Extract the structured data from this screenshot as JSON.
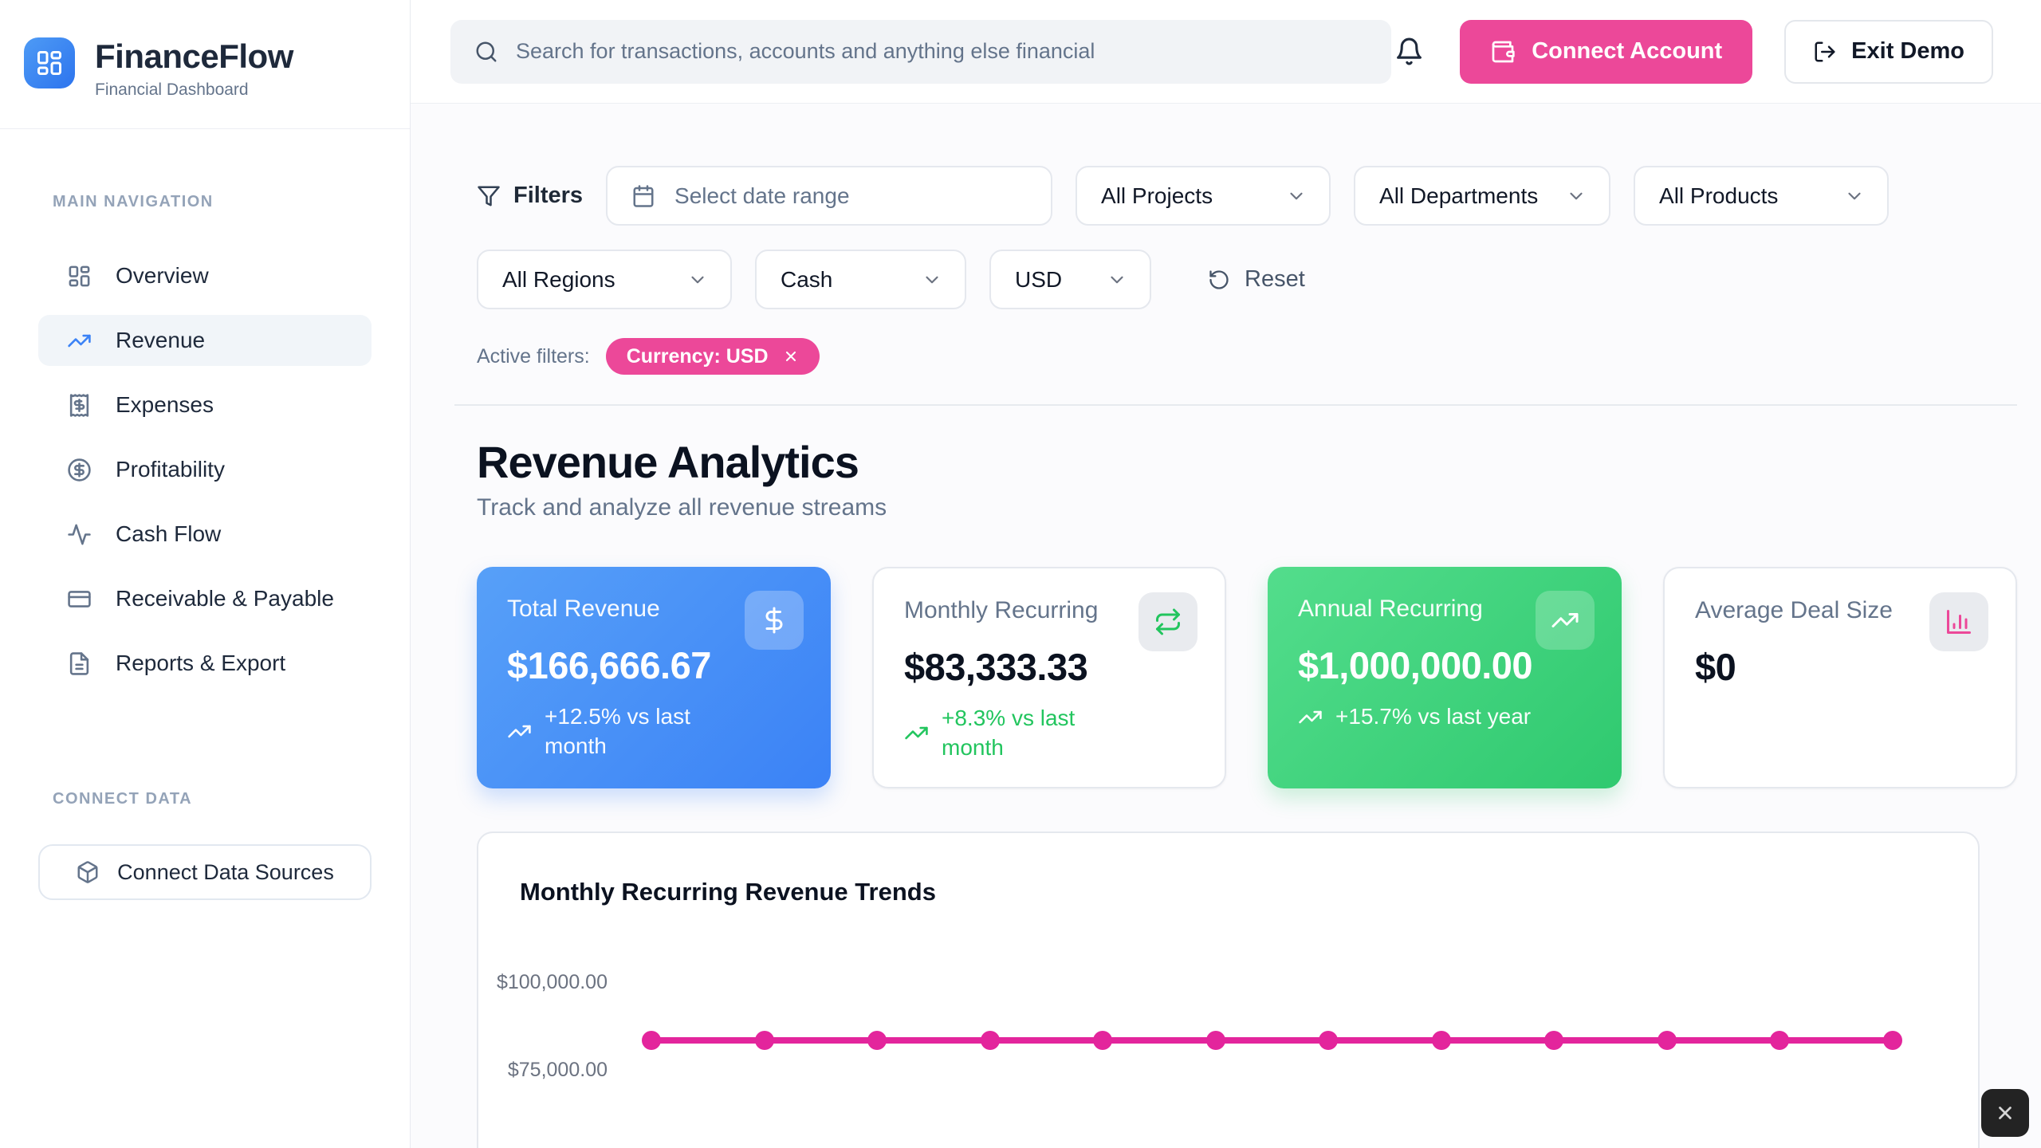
{
  "brand": {
    "name": "FinanceFlow",
    "tagline": "Financial Dashboard"
  },
  "topbar": {
    "search_placeholder": "Search for transactions, accounts and anything else financial",
    "connect_account": "Connect Account",
    "exit_demo": "Exit Demo"
  },
  "sidebar": {
    "section_main": "MAIN NAVIGATION",
    "items": [
      {
        "label": "Overview",
        "icon": "dashboard-icon",
        "active": false
      },
      {
        "label": "Revenue",
        "icon": "trending-up-icon",
        "active": true
      },
      {
        "label": "Expenses",
        "icon": "receipt-icon",
        "active": false
      },
      {
        "label": "Profitability",
        "icon": "circle-dollar-icon",
        "active": false
      },
      {
        "label": "Cash Flow",
        "icon": "activity-icon",
        "active": false
      },
      {
        "label": "Receivable & Payable",
        "icon": "credit-card-icon",
        "active": false
      },
      {
        "label": "Reports & Export",
        "icon": "file-text-icon",
        "active": false
      }
    ],
    "section_connect": "CONNECT DATA",
    "connect_button": "Connect Data Sources"
  },
  "filters": {
    "label": "Filters",
    "date_placeholder": "Select date range",
    "projects": "All Projects",
    "departments": "All Departments",
    "products": "All Products",
    "regions": "All Regions",
    "payment_type": "Cash",
    "currency": "USD",
    "reset": "Reset",
    "active_label": "Active filters:",
    "active_chip": "Currency: USD"
  },
  "page": {
    "title": "Revenue Analytics",
    "subtitle": "Track and analyze all revenue streams"
  },
  "stats": [
    {
      "title": "Total Revenue",
      "value": "$166,666.67",
      "change": "+12.5% vs last month",
      "style": "blue",
      "icon": "dollar-icon"
    },
    {
      "title": "Monthly Recurring",
      "value": "$83,333.33",
      "change": "+8.3% vs last month",
      "style": "white",
      "icon": "repeat-icon"
    },
    {
      "title": "Annual Recurring",
      "value": "$1,000,000.00",
      "change": "+15.7% vs last year",
      "style": "green",
      "icon": "trending-up-icon"
    },
    {
      "title": "Average Deal Size",
      "value": "$0",
      "style": "white",
      "icon": "bar-chart-icon"
    }
  ],
  "chart_data": {
    "type": "line",
    "title": "Monthly Recurring Revenue Trends",
    "series": [
      {
        "name": "Monthly Recurring Revenue",
        "values": [
          83333.33,
          83333.33,
          83333.33,
          83333.33,
          83333.33,
          83333.33,
          83333.33,
          83333.33,
          83333.33,
          83333.33,
          83333.33,
          83333.33
        ]
      }
    ],
    "num_points": 12,
    "y_ticks_visible": [
      "$100,000.00",
      "$75,000.00"
    ],
    "x_tick_labels_visible": false,
    "line_color": "#E3259C",
    "marker": "circle",
    "grid": false
  },
  "colors": {
    "accent_pink": "#EC4899",
    "brand_blue": "#3B82F6",
    "positive_green": "#22C55E",
    "chart_line": "#E3259C",
    "card_blue_gradient": [
      "#57A0F8",
      "#3B82F6"
    ],
    "card_green_gradient": [
      "#53DD8C",
      "#2FC96F"
    ]
  }
}
